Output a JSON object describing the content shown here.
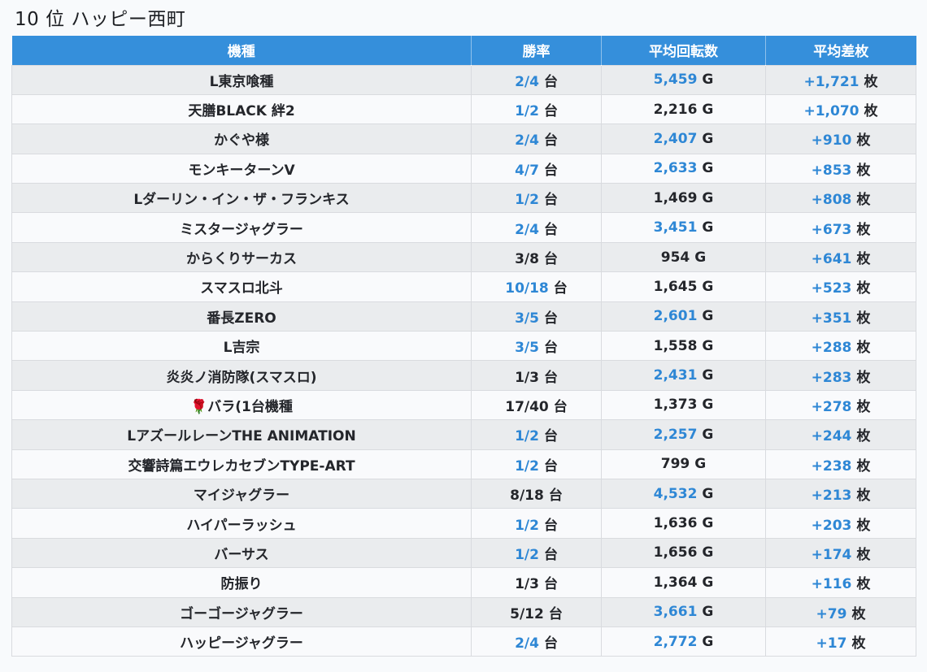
{
  "title": "10 位 ハッピー西町",
  "colors": {
    "header_bg": "#358fdb",
    "highlight_blue": "#2e87d5",
    "text_dark": "#24262b",
    "row_odd_bg": "#eaecee",
    "row_even_bg": "#f9fafc",
    "page_bg": "#f8fafc"
  },
  "table": {
    "headers": [
      "機種",
      "勝率",
      "平均回転数",
      "平均差枚"
    ],
    "units": {
      "rate": "台",
      "spins": "G",
      "diff": "枚"
    },
    "rows": [
      {
        "name": "L東京喰種",
        "rate": {
          "value": "2/4",
          "unit": "台",
          "highlight": true
        },
        "spins": {
          "value": "5,459",
          "unit": "G",
          "highlight": true
        },
        "diff": {
          "value": "+1,721",
          "unit": "枚",
          "highlight": true
        }
      },
      {
        "name": "天膳BLACK 絆2",
        "rate": {
          "value": "1/2",
          "unit": "台",
          "highlight": true
        },
        "spins": {
          "value": "2,216",
          "unit": "G",
          "highlight": false
        },
        "diff": {
          "value": "+1,070",
          "unit": "枚",
          "highlight": true
        }
      },
      {
        "name": "かぐや様",
        "rate": {
          "value": "2/4",
          "unit": "台",
          "highlight": true
        },
        "spins": {
          "value": "2,407",
          "unit": "G",
          "highlight": true
        },
        "diff": {
          "value": "+910",
          "unit": "枚",
          "highlight": true
        }
      },
      {
        "name": "モンキーターンV",
        "rate": {
          "value": "4/7",
          "unit": "台",
          "highlight": true
        },
        "spins": {
          "value": "2,633",
          "unit": "G",
          "highlight": true
        },
        "diff": {
          "value": "+853",
          "unit": "枚",
          "highlight": true
        }
      },
      {
        "name": "Lダーリン・イン・ザ・フランキス",
        "rate": {
          "value": "1/2",
          "unit": "台",
          "highlight": true
        },
        "spins": {
          "value": "1,469",
          "unit": "G",
          "highlight": false
        },
        "diff": {
          "value": "+808",
          "unit": "枚",
          "highlight": true
        }
      },
      {
        "name": "ミスタージャグラー",
        "rate": {
          "value": "2/4",
          "unit": "台",
          "highlight": true
        },
        "spins": {
          "value": "3,451",
          "unit": "G",
          "highlight": true
        },
        "diff": {
          "value": "+673",
          "unit": "枚",
          "highlight": true
        }
      },
      {
        "name": "からくりサーカス",
        "rate": {
          "value": "3/8",
          "unit": "台",
          "highlight": false
        },
        "spins": {
          "value": "954",
          "unit": "G",
          "highlight": false
        },
        "diff": {
          "value": "+641",
          "unit": "枚",
          "highlight": true
        }
      },
      {
        "name": "スマスロ北斗",
        "rate": {
          "value": "10/18",
          "unit": "台",
          "highlight": true
        },
        "spins": {
          "value": "1,645",
          "unit": "G",
          "highlight": false
        },
        "diff": {
          "value": "+523",
          "unit": "枚",
          "highlight": true
        }
      },
      {
        "name": "番長ZERO",
        "rate": {
          "value": "3/5",
          "unit": "台",
          "highlight": true
        },
        "spins": {
          "value": "2,601",
          "unit": "G",
          "highlight": true
        },
        "diff": {
          "value": "+351",
          "unit": "枚",
          "highlight": true
        }
      },
      {
        "name": "L吉宗",
        "rate": {
          "value": "3/5",
          "unit": "台",
          "highlight": true
        },
        "spins": {
          "value": "1,558",
          "unit": "G",
          "highlight": false
        },
        "diff": {
          "value": "+288",
          "unit": "枚",
          "highlight": true
        }
      },
      {
        "name": "炎炎ノ消防隊(スマスロ)",
        "rate": {
          "value": "1/3",
          "unit": "台",
          "highlight": false
        },
        "spins": {
          "value": "2,431",
          "unit": "G",
          "highlight": true
        },
        "diff": {
          "value": "+283",
          "unit": "枚",
          "highlight": true
        }
      },
      {
        "name": "🌹バラ(1台機種",
        "rate": {
          "value": "17/40",
          "unit": "台",
          "highlight": false
        },
        "spins": {
          "value": "1,373",
          "unit": "G",
          "highlight": false
        },
        "diff": {
          "value": "+278",
          "unit": "枚",
          "highlight": true
        }
      },
      {
        "name": "LアズールレーンTHE ANIMATION",
        "rate": {
          "value": "1/2",
          "unit": "台",
          "highlight": true
        },
        "spins": {
          "value": "2,257",
          "unit": "G",
          "highlight": true
        },
        "diff": {
          "value": "+244",
          "unit": "枚",
          "highlight": true
        }
      },
      {
        "name": "交響詩篇エウレカセブンTYPE-ART",
        "rate": {
          "value": "1/2",
          "unit": "台",
          "highlight": true
        },
        "spins": {
          "value": "799",
          "unit": "G",
          "highlight": false
        },
        "diff": {
          "value": "+238",
          "unit": "枚",
          "highlight": true
        }
      },
      {
        "name": "マイジャグラー",
        "rate": {
          "value": "8/18",
          "unit": "台",
          "highlight": false
        },
        "spins": {
          "value": "4,532",
          "unit": "G",
          "highlight": true
        },
        "diff": {
          "value": "+213",
          "unit": "枚",
          "highlight": true
        }
      },
      {
        "name": "ハイパーラッシュ",
        "rate": {
          "value": "1/2",
          "unit": "台",
          "highlight": true
        },
        "spins": {
          "value": "1,636",
          "unit": "G",
          "highlight": false
        },
        "diff": {
          "value": "+203",
          "unit": "枚",
          "highlight": true
        }
      },
      {
        "name": "バーサス",
        "rate": {
          "value": "1/2",
          "unit": "台",
          "highlight": true
        },
        "spins": {
          "value": "1,656",
          "unit": "G",
          "highlight": false
        },
        "diff": {
          "value": "+174",
          "unit": "枚",
          "highlight": true
        }
      },
      {
        "name": "防振り",
        "rate": {
          "value": "1/3",
          "unit": "台",
          "highlight": false
        },
        "spins": {
          "value": "1,364",
          "unit": "G",
          "highlight": false
        },
        "diff": {
          "value": "+116",
          "unit": "枚",
          "highlight": true
        }
      },
      {
        "name": "ゴーゴージャグラー",
        "rate": {
          "value": "5/12",
          "unit": "台",
          "highlight": false
        },
        "spins": {
          "value": "3,661",
          "unit": "G",
          "highlight": true
        },
        "diff": {
          "value": "+79",
          "unit": "枚",
          "highlight": true
        }
      },
      {
        "name": "ハッピージャグラー",
        "rate": {
          "value": "2/4",
          "unit": "台",
          "highlight": true
        },
        "spins": {
          "value": "2,772",
          "unit": "G",
          "highlight": true
        },
        "diff": {
          "value": "+17",
          "unit": "枚",
          "highlight": true
        }
      }
    ]
  },
  "chart_data": {
    "type": "table",
    "title": "10 位 ハッピー西町",
    "columns": [
      "機種",
      "勝率",
      "平均回転数",
      "平均差枚"
    ],
    "rows": [
      [
        "L東京喰種",
        "2/4 台",
        "5,459 G",
        "+1,721 枚"
      ],
      [
        "天膳BLACK 絆2",
        "1/2 台",
        "2,216 G",
        "+1,070 枚"
      ],
      [
        "かぐや様",
        "2/4 台",
        "2,407 G",
        "+910 枚"
      ],
      [
        "モンキーターンV",
        "4/7 台",
        "2,633 G",
        "+853 枚"
      ],
      [
        "Lダーリン・イン・ザ・フランキス",
        "1/2 台",
        "1,469 G",
        "+808 枚"
      ],
      [
        "ミスタージャグラー",
        "2/4 台",
        "3,451 G",
        "+673 枚"
      ],
      [
        "からくりサーカス",
        "3/8 台",
        "954 G",
        "+641 枚"
      ],
      [
        "スマスロ北斗",
        "10/18 台",
        "1,645 G",
        "+523 枚"
      ],
      [
        "番長ZERO",
        "3/5 台",
        "2,601 G",
        "+351 枚"
      ],
      [
        "L吉宗",
        "3/5 台",
        "1,558 G",
        "+288 枚"
      ],
      [
        "炎炎ノ消防隊(スマスロ)",
        "1/3 台",
        "2,431 G",
        "+283 枚"
      ],
      [
        "🌹バラ(1台機種",
        "17/40 台",
        "1,373 G",
        "+278 枚"
      ],
      [
        "LアズールレーンTHE ANIMATION",
        "1/2 台",
        "2,257 G",
        "+244 枚"
      ],
      [
        "交響詩篇エウレカセブンTYPE-ART",
        "1/2 台",
        "799 G",
        "+238 枚"
      ],
      [
        "マイジャグラー",
        "8/18 台",
        "4,532 G",
        "+213 枚"
      ],
      [
        "ハイパーラッシュ",
        "1/2 台",
        "1,636 G",
        "+203 枚"
      ],
      [
        "バーサス",
        "1/2 台",
        "1,656 G",
        "+174 枚"
      ],
      [
        "防振り",
        "1/3 台",
        "1,364 G",
        "+116 枚"
      ],
      [
        "ゴーゴージャグラー",
        "5/12 台",
        "3,661 G",
        "+79 枚"
      ],
      [
        "ハッピージャグラー",
        "2/4 台",
        "2,772 G",
        "+17 枚"
      ]
    ]
  }
}
